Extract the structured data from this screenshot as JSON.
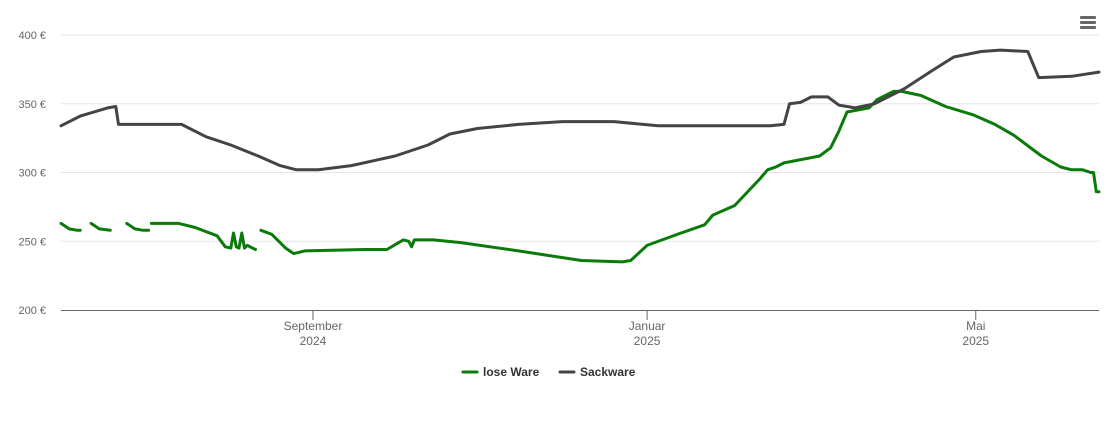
{
  "chart_data": {
    "type": "line",
    "y_unit": "€",
    "ylim": [
      200,
      400
    ],
    "y_ticks": [
      {
        "value": 200,
        "label": "200 €"
      },
      {
        "value": 250,
        "label": "250 €"
      },
      {
        "value": 300,
        "label": "300 €"
      },
      {
        "value": 350,
        "label": "350 €"
      },
      {
        "value": 400,
        "label": "400 €"
      }
    ],
    "xlim": [
      "2024-06-01",
      "2025-06-15"
    ],
    "x_ticks": [
      {
        "date": "2024-09-01",
        "label": "September",
        "year": "2024"
      },
      {
        "date": "2025-01-01",
        "label": "Januar",
        "year": "2025"
      },
      {
        "date": "2025-05-01",
        "label": "Mai",
        "year": "2025"
      }
    ],
    "grid": "horizontal",
    "legend_position": "bottom-center",
    "series": [
      {
        "name": "lose Ware",
        "color": "#0a7a0a",
        "segments": [
          [
            [
              "2024-06-01",
              263
            ],
            [
              "2024-06-04",
              259
            ],
            [
              "2024-06-07",
              258
            ],
            [
              "2024-06-08",
              258
            ]
          ],
          [
            [
              "2024-06-12",
              263
            ],
            [
              "2024-06-15",
              259
            ],
            [
              "2024-06-19",
              258
            ]
          ],
          [
            [
              "2024-06-25",
              263
            ],
            [
              "2024-06-28",
              259
            ],
            [
              "2024-07-01",
              258
            ],
            [
              "2024-07-03",
              258
            ]
          ],
          [
            [
              "2024-07-04",
              263
            ],
            [
              "2024-07-14",
              263
            ],
            [
              "2024-07-20",
              260
            ],
            [
              "2024-07-28",
              254
            ],
            [
              "2024-07-31",
              246
            ],
            [
              "2024-08-02",
              245
            ],
            [
              "2024-08-03",
              256
            ],
            [
              "2024-08-04",
              246
            ],
            [
              "2024-08-05",
              245
            ],
            [
              "2024-08-06",
              256
            ],
            [
              "2024-08-07",
              245
            ],
            [
              "2024-08-08",
              247
            ],
            [
              "2024-08-11",
              244
            ]
          ],
          [
            [
              "2024-08-13",
              258
            ],
            [
              "2024-08-17",
              255
            ],
            [
              "2024-08-22",
              245
            ],
            [
              "2024-08-25",
              241
            ],
            [
              "2024-08-29",
              243
            ],
            [
              "2024-09-20",
              244
            ],
            [
              "2024-09-28",
              244
            ],
            [
              "2024-10-04",
              251
            ],
            [
              "2024-10-06",
              250
            ],
            [
              "2024-10-07",
              246
            ],
            [
              "2024-10-08",
              251
            ],
            [
              "2024-10-15",
              251
            ],
            [
              "2024-10-25",
              249
            ],
            [
              "2024-11-15",
              243
            ],
            [
              "2024-12-08",
              236
            ],
            [
              "2024-12-23",
              235
            ],
            [
              "2024-12-26",
              236
            ],
            [
              "2025-01-01",
              247
            ],
            [
              "2025-01-12",
              255
            ],
            [
              "2025-01-22",
              262
            ],
            [
              "2025-01-25",
              269
            ],
            [
              "2025-02-02",
              276
            ],
            [
              "2025-02-11",
              295
            ],
            [
              "2025-02-14",
              302
            ],
            [
              "2025-02-17",
              304
            ],
            [
              "2025-02-20",
              307
            ],
            [
              "2025-03-05",
              312
            ],
            [
              "2025-03-09",
              318
            ],
            [
              "2025-03-12",
              330
            ],
            [
              "2025-03-15",
              344
            ],
            [
              "2025-03-23",
              347
            ],
            [
              "2025-03-26",
              353
            ],
            [
              "2025-04-01",
              359
            ],
            [
              "2025-04-04",
              359
            ],
            [
              "2025-04-11",
              356
            ],
            [
              "2025-04-20",
              348
            ],
            [
              "2025-04-30",
              342
            ],
            [
              "2025-05-08",
              335
            ],
            [
              "2025-05-15",
              327
            ],
            [
              "2025-05-25",
              312
            ],
            [
              "2025-06-01",
              304
            ],
            [
              "2025-06-05",
              302
            ],
            [
              "2025-06-09",
              302
            ],
            [
              "2025-06-12",
              300
            ]
          ],
          [
            [
              "2025-06-12",
              300
            ],
            [
              "2025-06-13",
              300
            ],
            [
              "2025-06-14",
              286
            ],
            [
              "2025-06-15",
              286
            ]
          ]
        ]
      },
      {
        "name": "Sackware",
        "color": "#444444",
        "segments": [
          [
            [
              "2024-06-01",
              334
            ],
            [
              "2024-06-08",
              341
            ],
            [
              "2024-06-18",
              347
            ],
            [
              "2024-06-21",
              348
            ],
            [
              "2024-06-22",
              335
            ],
            [
              "2024-07-15",
              335
            ],
            [
              "2024-07-18",
              332
            ],
            [
              "2024-07-24",
              326
            ],
            [
              "2024-08-02",
              320
            ],
            [
              "2024-08-12",
              312
            ],
            [
              "2024-08-20",
              305
            ],
            [
              "2024-08-26",
              302
            ],
            [
              "2024-09-03",
              302
            ],
            [
              "2024-09-15",
              305
            ],
            [
              "2024-10-01",
              312
            ],
            [
              "2024-10-13",
              320
            ],
            [
              "2024-10-21",
              328
            ],
            [
              "2024-10-31",
              332
            ],
            [
              "2024-11-15",
              335
            ],
            [
              "2024-12-01",
              337
            ],
            [
              "2024-12-20",
              337
            ],
            [
              "2025-01-05",
              334
            ],
            [
              "2025-01-15",
              334
            ],
            [
              "2025-02-15",
              334
            ],
            [
              "2025-02-20",
              335
            ],
            [
              "2025-02-22",
              350
            ],
            [
              "2025-02-26",
              351
            ],
            [
              "2025-03-02",
              355
            ],
            [
              "2025-03-08",
              355
            ],
            [
              "2025-03-12",
              349
            ],
            [
              "2025-03-18",
              347
            ],
            [
              "2025-03-25",
              350
            ],
            [
              "2025-04-05",
              361
            ],
            [
              "2025-04-15",
              374
            ],
            [
              "2025-04-23",
              384
            ],
            [
              "2025-05-03",
              388
            ],
            [
              "2025-05-10",
              389
            ],
            [
              "2025-05-20",
              388
            ],
            [
              "2025-05-24",
              369
            ],
            [
              "2025-06-05",
              370
            ],
            [
              "2025-06-15",
              373
            ]
          ]
        ]
      }
    ]
  }
}
